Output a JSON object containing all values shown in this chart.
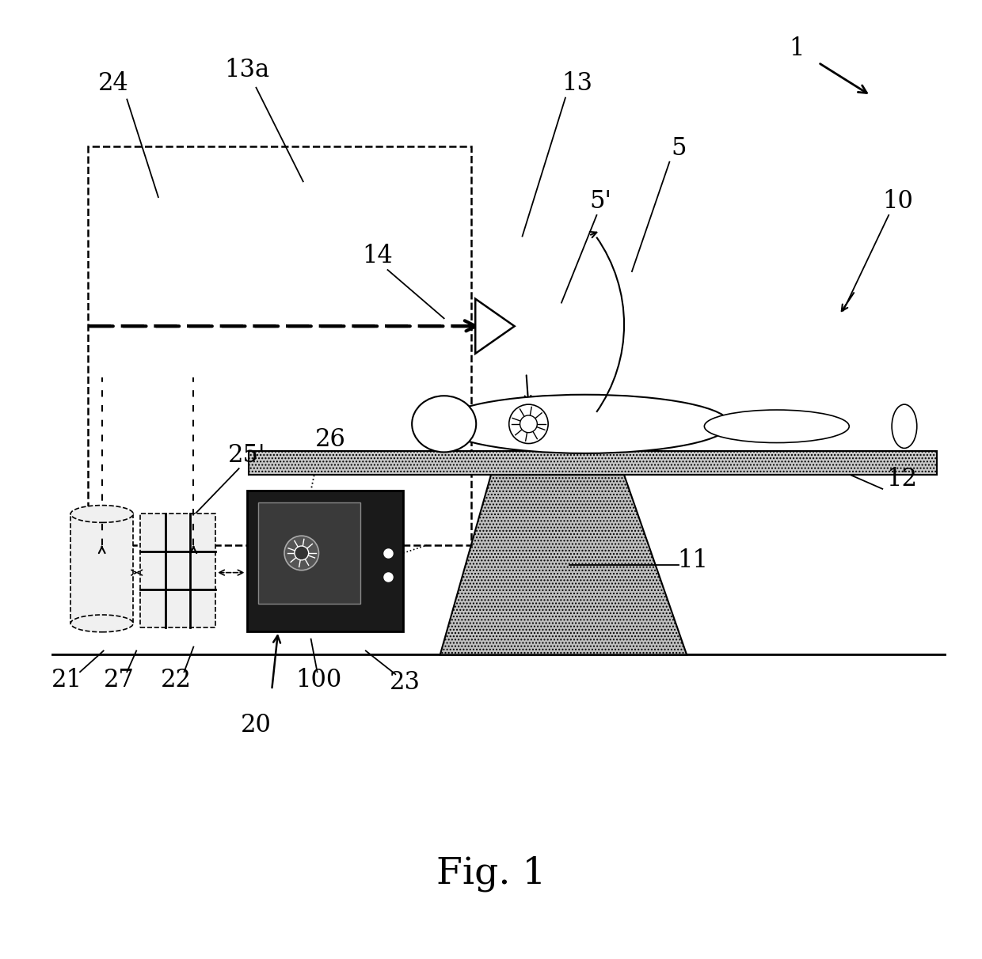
{
  "title": "Fig. 1",
  "bg_color": "#ffffff",
  "fig_width": 12.4,
  "fig_height": 12.12
}
